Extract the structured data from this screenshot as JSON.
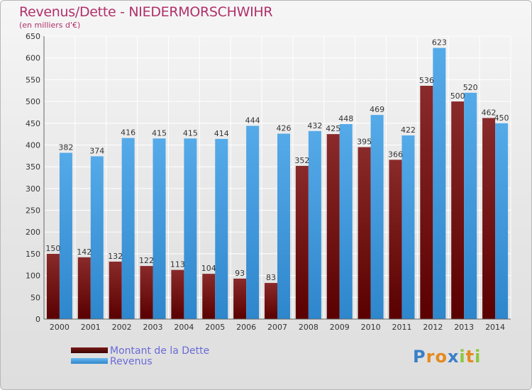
{
  "header": {
    "title": "Revenus/Dette - NIEDERMORSCHWIHR",
    "subtitle": "(en milliers d'€)"
  },
  "chart_data": {
    "type": "bar",
    "categories": [
      "2000",
      "2001",
      "2002",
      "2003",
      "2004",
      "2005",
      "2006",
      "2007",
      "2008",
      "2009",
      "2010",
      "2011",
      "2012",
      "2013",
      "2014"
    ],
    "series": [
      {
        "name": "Montant de la Dette",
        "color": "#7a1818",
        "values": [
          150,
          142,
          132,
          122,
          113,
          104,
          93,
          83,
          352,
          425,
          395,
          366,
          536,
          500,
          462
        ]
      },
      {
        "name": "Revenus",
        "color": "#4aa0e0",
        "values": [
          382,
          374,
          416,
          415,
          415,
          414,
          444,
          426,
          432,
          448,
          469,
          422,
          623,
          520,
          450
        ]
      }
    ],
    "ylim": [
      0,
      650
    ],
    "yticks": [
      0,
      50,
      100,
      150,
      200,
      250,
      300,
      350,
      400,
      450,
      500,
      550,
      600,
      650
    ],
    "grid": true
  },
  "legend": {
    "items": [
      {
        "label": "Montant de la Dette",
        "color": "#6e1010"
      },
      {
        "label": "Revenus",
        "color": "#4aa0e0"
      }
    ]
  },
  "logo": {
    "letters": [
      "P",
      "r",
      "o",
      "x",
      "i",
      "t",
      "i"
    ],
    "colors": [
      "#3a7fc8",
      "#e58a1f",
      "#e58a1f",
      "#3a7fc8",
      "#8cc63f",
      "#e58a1f",
      "#8cc63f"
    ]
  }
}
